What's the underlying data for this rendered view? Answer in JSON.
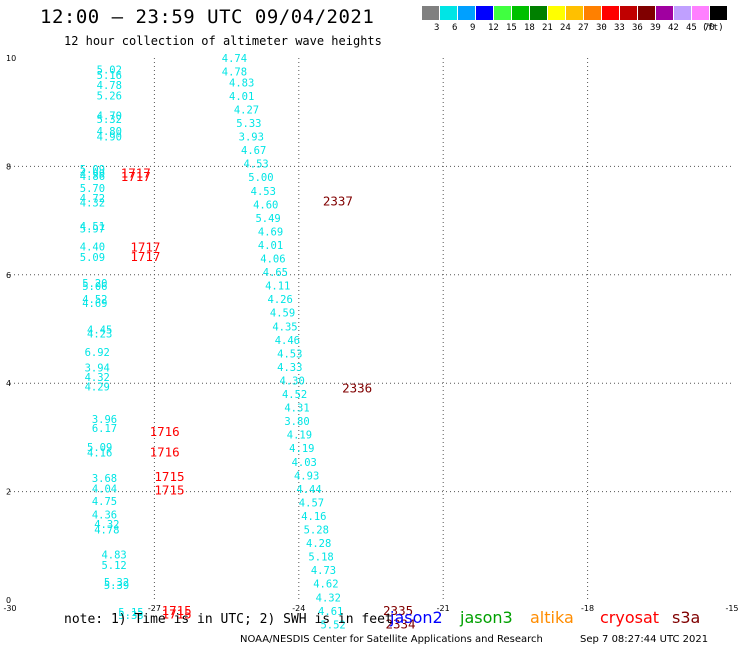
{
  "header": {
    "title": "12:00 – 23:59 UTC 09/04/2021",
    "subtitle": "12 hour collection of altimeter wave heights"
  },
  "legend": {
    "unit": "(ft)",
    "items": [
      {
        "label": "3",
        "color": "#808080"
      },
      {
        "label": "6",
        "color": "#00e5e5"
      },
      {
        "label": "9",
        "color": "#00a0ff"
      },
      {
        "label": "12",
        "color": "#0000ff"
      },
      {
        "label": "15",
        "color": "#40ff40"
      },
      {
        "label": "18",
        "color": "#00c000"
      },
      {
        "label": "21",
        "color": "#008000"
      },
      {
        "label": "24",
        "color": "#ffff00"
      },
      {
        "label": "27",
        "color": "#ffc000"
      },
      {
        "label": "30",
        "color": "#ff8000"
      },
      {
        "label": "33",
        "color": "#ff0000"
      },
      {
        "label": "36",
        "color": "#c00000"
      },
      {
        "label": "39",
        "color": "#800000"
      },
      {
        "label": "42",
        "color": "#a000a0"
      },
      {
        "label": "45",
        "color": "#c0a0ff"
      },
      {
        "label": "70",
        "color": "#ff80ff"
      },
      {
        "label": "",
        "color": "#000000"
      }
    ]
  },
  "chart_data": {
    "type": "scatter",
    "xlim": [
      -30,
      -15
    ],
    "ylim": [
      0,
      10
    ],
    "xticks": [
      "-30",
      "-27",
      "-24",
      "-21",
      "-18",
      "-15"
    ],
    "yticks": [
      "0",
      "2",
      "4",
      "6",
      "8",
      "10"
    ],
    "grid": true,
    "colors": {
      "swh": "#00e5e5",
      "time_cryosat": "#ff0000",
      "time_s3a": "#800000"
    },
    "swh_labels": [
      {
        "x": -28.2,
        "y": 9.79,
        "text": "5.02"
      },
      {
        "x": -28.2,
        "y": 9.69,
        "text": "5.16"
      },
      {
        "x": -28.2,
        "y": 9.5,
        "text": "4.78"
      },
      {
        "x": -28.2,
        "y": 9.31,
        "text": "5.26"
      },
      {
        "x": -28.2,
        "y": 8.94,
        "text": "4.70"
      },
      {
        "x": -28.2,
        "y": 8.87,
        "text": "5.32"
      },
      {
        "x": -28.2,
        "y": 8.65,
        "text": "4.80"
      },
      {
        "x": -28.2,
        "y": 8.55,
        "text": "4.90"
      },
      {
        "x": -28.55,
        "y": 7.95,
        "text": "5.09"
      },
      {
        "x": -28.55,
        "y": 7.87,
        "text": "4.99"
      },
      {
        "x": -28.55,
        "y": 7.82,
        "text": "4.86"
      },
      {
        "x": -28.55,
        "y": 7.6,
        "text": "5.70"
      },
      {
        "x": -28.55,
        "y": 7.42,
        "text": "4.72"
      },
      {
        "x": -28.55,
        "y": 7.33,
        "text": "4.32"
      },
      {
        "x": -28.55,
        "y": 6.9,
        "text": "4.51"
      },
      {
        "x": -28.55,
        "y": 6.85,
        "text": "5.97"
      },
      {
        "x": -28.55,
        "y": 6.52,
        "text": "4.40"
      },
      {
        "x": -28.55,
        "y": 6.33,
        "text": "5.09"
      },
      {
        "x": -28.5,
        "y": 5.85,
        "text": "5.20"
      },
      {
        "x": -28.5,
        "y": 5.79,
        "text": "5.06"
      },
      {
        "x": -28.5,
        "y": 5.55,
        "text": "4.52"
      },
      {
        "x": -28.5,
        "y": 5.48,
        "text": "4.69"
      },
      {
        "x": -28.4,
        "y": 4.99,
        "text": "4.45"
      },
      {
        "x": -28.4,
        "y": 4.92,
        "text": "4.23"
      },
      {
        "x": -28.45,
        "y": 4.58,
        "text": "6.92"
      },
      {
        "x": -28.45,
        "y": 4.29,
        "text": "3.94"
      },
      {
        "x": -28.45,
        "y": 4.11,
        "text": "4.32"
      },
      {
        "x": -28.45,
        "y": 3.94,
        "text": "4.29"
      },
      {
        "x": -28.3,
        "y": 3.34,
        "text": "3.96"
      },
      {
        "x": -28.3,
        "y": 3.17,
        "text": "6.17"
      },
      {
        "x": -28.4,
        "y": 2.82,
        "text": "5.09"
      },
      {
        "x": -28.4,
        "y": 2.72,
        "text": "4.16"
      },
      {
        "x": -28.3,
        "y": 2.25,
        "text": "3.68"
      },
      {
        "x": -28.3,
        "y": 2.06,
        "text": "4.04"
      },
      {
        "x": -28.3,
        "y": 1.83,
        "text": "4.75"
      },
      {
        "x": -28.3,
        "y": 1.58,
        "text": "4.36"
      },
      {
        "x": -28.25,
        "y": 1.4,
        "text": "4.32"
      },
      {
        "x": -28.25,
        "y": 1.3,
        "text": "4.78"
      },
      {
        "x": -28.1,
        "y": 0.84,
        "text": "4.83"
      },
      {
        "x": -28.1,
        "y": 0.65,
        "text": "5.12"
      },
      {
        "x": -28.05,
        "y": 0.33,
        "text": "5.32"
      },
      {
        "x": -28.05,
        "y": 0.28,
        "text": "5.39"
      },
      {
        "x": -27.75,
        "y": -0.22,
        "text": "5.15"
      },
      {
        "x": -27.75,
        "y": -0.28,
        "text": "5.33"
      },
      {
        "x": -25.6,
        "y": 10.0,
        "text": "4.74"
      },
      {
        "x": -25.6,
        "y": 9.75,
        "text": "4.78"
      },
      {
        "x": -25.45,
        "y": 9.55,
        "text": "4.83"
      },
      {
        "x": -25.45,
        "y": 9.3,
        "text": "4.01"
      },
      {
        "x": -25.35,
        "y": 9.05,
        "text": "4.27"
      },
      {
        "x": -25.3,
        "y": 8.8,
        "text": "5.33"
      },
      {
        "x": -25.25,
        "y": 8.55,
        "text": "3.93"
      },
      {
        "x": -25.2,
        "y": 8.3,
        "text": "4.67"
      },
      {
        "x": -25.15,
        "y": 8.05,
        "text": "4.53"
      },
      {
        "x": -25.05,
        "y": 7.8,
        "text": "5.00"
      },
      {
        "x": -25.0,
        "y": 7.55,
        "text": "4.53"
      },
      {
        "x": -24.95,
        "y": 7.3,
        "text": "4.60"
      },
      {
        "x": -24.9,
        "y": 7.05,
        "text": "5.49"
      },
      {
        "x": -24.85,
        "y": 6.8,
        "text": "4.69"
      },
      {
        "x": -24.85,
        "y": 6.55,
        "text": "4.01"
      },
      {
        "x": -24.8,
        "y": 6.3,
        "text": "4.06"
      },
      {
        "x": -24.75,
        "y": 6.05,
        "text": "4.65"
      },
      {
        "x": -24.7,
        "y": 5.8,
        "text": "4.11"
      },
      {
        "x": -24.65,
        "y": 5.55,
        "text": "4.26"
      },
      {
        "x": -24.6,
        "y": 5.3,
        "text": "4.59"
      },
      {
        "x": -24.55,
        "y": 5.05,
        "text": "4.35"
      },
      {
        "x": -24.5,
        "y": 4.8,
        "text": "4.46"
      },
      {
        "x": -24.45,
        "y": 4.55,
        "text": "4.53"
      },
      {
        "x": -24.45,
        "y": 4.3,
        "text": "4.33"
      },
      {
        "x": -24.4,
        "y": 4.05,
        "text": "4.30"
      },
      {
        "x": -24.35,
        "y": 3.8,
        "text": "4.52"
      },
      {
        "x": -24.3,
        "y": 3.55,
        "text": "4.31"
      },
      {
        "x": -24.3,
        "y": 3.3,
        "text": "3.80"
      },
      {
        "x": -24.25,
        "y": 3.05,
        "text": "4.19"
      },
      {
        "x": -24.2,
        "y": 2.8,
        "text": "4.19"
      },
      {
        "x": -24.15,
        "y": 2.55,
        "text": "4.03"
      },
      {
        "x": -24.1,
        "y": 2.3,
        "text": "4.93"
      },
      {
        "x": -24.05,
        "y": 2.05,
        "text": "4.44"
      },
      {
        "x": -24.0,
        "y": 1.8,
        "text": "4.57"
      },
      {
        "x": -23.95,
        "y": 1.55,
        "text": "4.16"
      },
      {
        "x": -23.9,
        "y": 1.3,
        "text": "5.28"
      },
      {
        "x": -23.85,
        "y": 1.05,
        "text": "4.28"
      },
      {
        "x": -23.8,
        "y": 0.8,
        "text": "5.18"
      },
      {
        "x": -23.75,
        "y": 0.55,
        "text": "4.73"
      },
      {
        "x": -23.7,
        "y": 0.3,
        "text": "4.62"
      },
      {
        "x": -23.65,
        "y": 0.05,
        "text": "4.32"
      },
      {
        "x": -23.6,
        "y": -0.2,
        "text": "4.61"
      },
      {
        "x": -23.55,
        "y": -0.45,
        "text": "5.52"
      }
    ],
    "time_labels": [
      {
        "x": -27.7,
        "y": 7.87,
        "text": "1717",
        "mission": "cryosat"
      },
      {
        "x": -27.7,
        "y": 7.8,
        "text": "1717",
        "mission": "cryosat"
      },
      {
        "x": -27.5,
        "y": 6.5,
        "text": "1717",
        "mission": "cryosat"
      },
      {
        "x": -27.5,
        "y": 6.33,
        "text": "1717",
        "mission": "cryosat"
      },
      {
        "x": -27.1,
        "y": 3.1,
        "text": "1716",
        "mission": "cryosat"
      },
      {
        "x": -27.1,
        "y": 2.72,
        "text": "1716",
        "mission": "cryosat"
      },
      {
        "x": -27.0,
        "y": 2.27,
        "text": "1715",
        "mission": "cryosat"
      },
      {
        "x": -27.0,
        "y": 2.02,
        "text": "1715",
        "mission": "cryosat"
      },
      {
        "x": -26.85,
        "y": -0.2,
        "text": "1715",
        "mission": "cryosat"
      },
      {
        "x": -26.85,
        "y": -0.27,
        "text": "1715",
        "mission": "cryosat"
      },
      {
        "x": -23.5,
        "y": 7.35,
        "text": "2337",
        "mission": "s3a"
      },
      {
        "x": -23.1,
        "y": 3.9,
        "text": "2336",
        "mission": "s3a"
      },
      {
        "x": -22.25,
        "y": -0.2,
        "text": "2335",
        "mission": "s3a"
      },
      {
        "x": -22.2,
        "y": -0.45,
        "text": "2334",
        "mission": "s3a"
      }
    ]
  },
  "note": "note:  1) Time is in UTC; 2) SWH is in feet",
  "missions": [
    {
      "label": "jason2",
      "color": "#0000ff"
    },
    {
      "label": "jason3",
      "color": "#00a000"
    },
    {
      "label": "altika",
      "color": "#ff8c00"
    },
    {
      "label": "cryosat",
      "color": "#ff0000"
    },
    {
      "label": "s3a",
      "color": "#800000"
    }
  ],
  "footer": "NOAA/NESDIS Center for Satellite Applications and Research",
  "timestamp": "Sep  7 08:27:44 UTC 2021"
}
